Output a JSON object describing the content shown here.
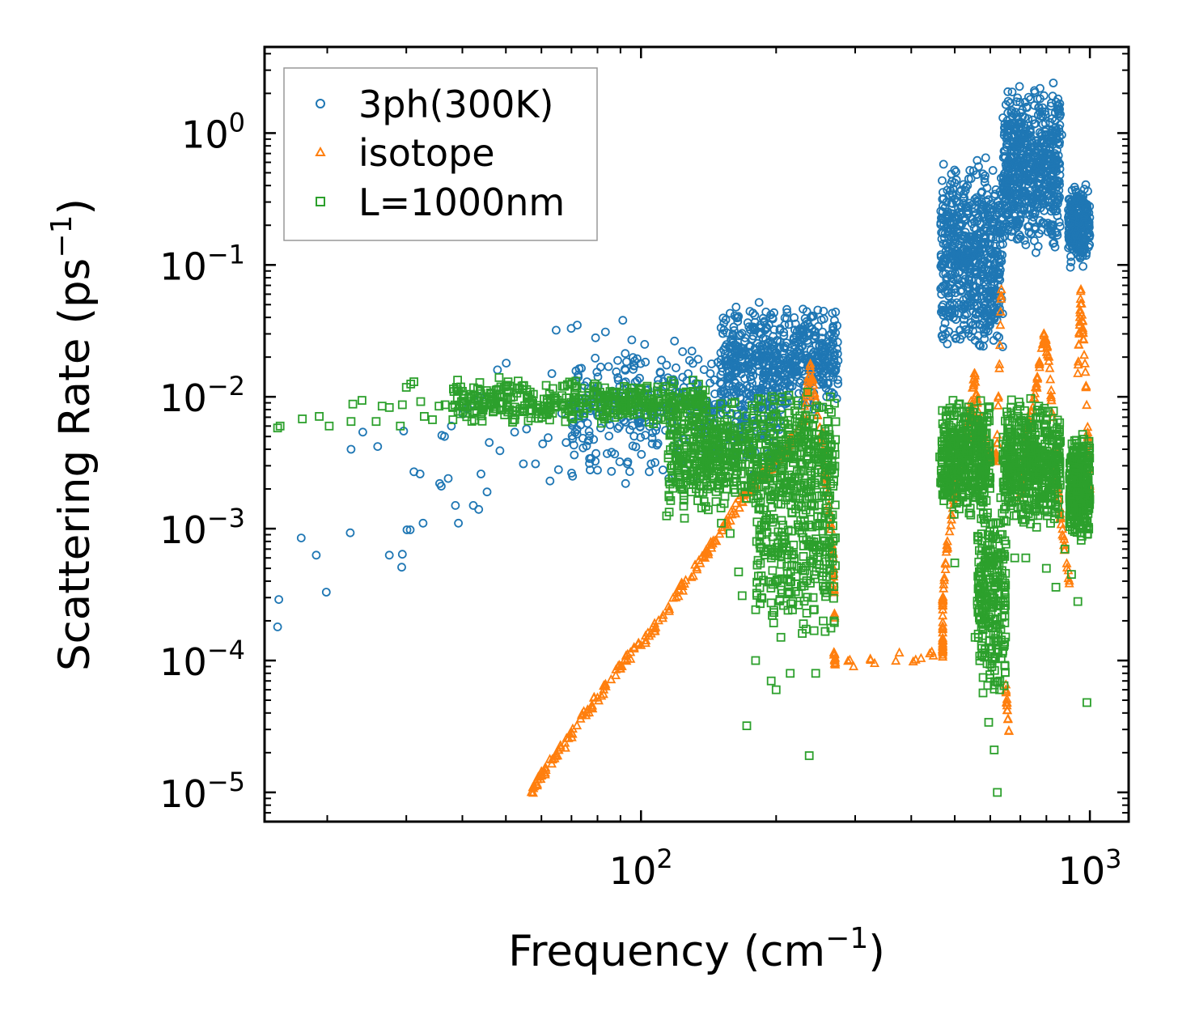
{
  "chart_data": {
    "type": "scatter",
    "xscale": "log",
    "yscale": "log",
    "xlim": [
      14.5,
      1220
    ],
    "ylim": [
      6e-06,
      4.5
    ],
    "xlabel": {
      "base": "Frequency (cm",
      "sup": "−1",
      "tail": ")"
    },
    "ylabel": {
      "base": "Scattering Rate (ps",
      "sup": "−1",
      "tail": ")"
    },
    "x_ticks": [
      {
        "value": 100,
        "base": "10",
        "exp": "2"
      },
      {
        "value": 1000,
        "base": "10",
        "exp": "3"
      }
    ],
    "y_ticks": [
      {
        "value": 1,
        "base": "10",
        "exp": "0"
      },
      {
        "value": 0.1,
        "base": "10",
        "exp": "−1"
      },
      {
        "value": 0.01,
        "base": "10",
        "exp": "−2"
      },
      {
        "value": 0.001,
        "base": "10",
        "exp": "−3"
      },
      {
        "value": 0.0001,
        "base": "10",
        "exp": "−4"
      },
      {
        "value": 1e-05,
        "base": "10",
        "exp": "−5"
      }
    ],
    "legend_position": "top-left",
    "series": [
      {
        "name": "3ph(300K)",
        "marker": "circle",
        "color": "#1f77b4",
        "points": [
          [
            15.5,
            0.00018
          ],
          [
            15.6,
            0.00029
          ],
          [
            17.5,
            0.00085
          ],
          [
            18.9,
            0.00063
          ],
          [
            19.9,
            0.00033
          ],
          [
            22.5,
            0.00093
          ],
          [
            22.6,
            0.004
          ],
          [
            24,
            0.0054
          ],
          [
            25.9,
            0.0042
          ],
          [
            27.5,
            0.00063
          ],
          [
            29.3,
            0.00051
          ],
          [
            29.4,
            0.00064
          ],
          [
            29.6,
            0.0055
          ],
          [
            30.1,
            0.00098
          ],
          [
            30.6,
            0.00098
          ],
          [
            31.2,
            0.0027
          ],
          [
            32.2,
            0.0026
          ],
          [
            32.7,
            0.0011
          ],
          [
            35.6,
            0.0022
          ],
          [
            35.9,
            0.0021
          ],
          [
            36,
            0.0051
          ],
          [
            36.5,
            0.005
          ],
          [
            37.2,
            0.0024
          ],
          [
            37.8,
            0.006
          ],
          [
            38.6,
            0.0015
          ],
          [
            39.2,
            0.0011
          ],
          [
            40.1,
            0.0074
          ],
          [
            41.2,
            0.0082
          ],
          [
            42.3,
            0.0015
          ],
          [
            43.5,
            0.0014
          ],
          [
            43.8,
            0.0099
          ],
          [
            44,
            0.0026
          ],
          [
            45.4,
            0.0019
          ],
          [
            45.9,
            0.0045
          ],
          [
            47.9,
            0.016
          ],
          [
            48.5,
            0.0039
          ],
          [
            50.1,
            0.018
          ],
          [
            52.3,
            0.0054
          ],
          [
            54.7,
            0.0031
          ],
          [
            55.6,
            0.0057
          ],
          [
            58.2,
            0.0031
          ],
          [
            60.4,
            0.0044
          ],
          [
            62.1,
            0.0049
          ],
          [
            62.7,
            0.0023
          ],
          [
            63.3,
            0.015
          ],
          [
            64.7,
            0.032
          ],
          [
            65.5,
            0.0028
          ],
          [
            66.6,
            0.0075
          ],
          [
            68.1,
            0.0045
          ],
          [
            69.9,
            0.033
          ],
          [
            70.4,
            0.0025
          ],
          [
            72.1,
            0.035
          ],
          [
            74.3,
            0.0041
          ],
          [
            75.8,
            0.013
          ],
          [
            76.8,
            0.0034
          ],
          [
            79.2,
            0.028
          ],
          [
            81.3,
            0.0058
          ],
          [
            83.3,
            0.031
          ],
          [
            86,
            0.0038
          ],
          [
            88.8,
            0.014
          ],
          [
            91.1,
            0.038
          ],
          [
            92.4,
            0.0022
          ],
          [
            95.4,
            0.027
          ],
          [
            98.5,
            0.0067
          ],
          [
            101.9,
            0.025
          ],
          [
            104.3,
            0.0027
          ],
          [
            108.5,
            0.0043
          ],
          [
            111.1,
            0.019
          ],
          [
            115.3,
            0.0024
          ],
          [
            119.4,
            0.0037
          ],
          [
            123.8,
            0.022
          ],
          [
            128.3,
            0.0088
          ],
          [
            132.9,
            0.0025
          ],
          [
            137.7,
            0.0052
          ],
          [
            142.7,
            0.015
          ],
          [
            147.9,
            0.0038
          ],
          [
            153.3,
            0.011
          ],
          [
            158.9,
            0.0075
          ],
          [
            164.6,
            0.024
          ],
          [
            170.6,
            0.028
          ],
          [
            176.8,
            0.034
          ],
          [
            183.2,
            0.052
          ],
          [
            189.8,
            0.044
          ],
          [
            196.7,
            0.039
          ],
          [
            203.9,
            0.032
          ],
          [
            211.3,
            0.046
          ],
          [
            219,
            0.028
          ],
          [
            227,
            0.026
          ],
          [
            235.2,
            0.036
          ],
          [
            243.7,
            0.031
          ],
          [
            252.6,
            0.022
          ],
          [
            261.8,
            0.017
          ],
          [
            271.3,
            0.044
          ],
          [
            472,
            0.58
          ],
          [
            493,
            0.43
          ],
          [
            514,
            0.36
          ],
          [
            537,
            0.28
          ],
          [
            561,
            0.62
          ],
          [
            586,
            0.65
          ],
          [
            612,
            0.071
          ],
          [
            639,
            0.16
          ],
          [
            667,
            0.22
          ],
          [
            697,
            0.31
          ],
          [
            728,
            0.48
          ],
          [
            760,
            0.87
          ],
          [
            794,
            1.45
          ],
          [
            829,
            2.4
          ],
          [
            866,
            0.97
          ],
          [
            905,
            0.096
          ],
          [
            945,
            0.21
          ],
          [
            987,
            0.27
          ]
        ],
        "clouds": [
          {
            "x_range": [
              70,
              210
            ],
            "y_range": [
              0.0024,
              0.028
            ],
            "count": 420
          },
          {
            "x_range": [
              150,
              275
            ],
            "y_range": [
              0.0075,
              0.05
            ],
            "count": 520
          },
          {
            "x_range": [
              465,
              640
            ],
            "y_range": [
              0.02,
              0.65
            ],
            "count": 650
          },
          {
            "x_range": [
              640,
              860
            ],
            "y_range": [
              0.12,
              2.4
            ],
            "count": 650
          },
          {
            "x_range": [
              895,
              1000
            ],
            "y_range": [
              0.095,
              0.42
            ],
            "count": 260
          }
        ]
      },
      {
        "name": "isotope",
        "marker": "triangle",
        "color": "#ff7f0e",
        "points": [
          [
            57,
            1e-05
          ],
          [
            60,
            1.35e-05
          ],
          [
            65,
            1.9e-05
          ],
          [
            72,
            3.2e-05
          ],
          [
            80,
            5.2e-05
          ],
          [
            90,
            9e-05
          ],
          [
            100,
            0.00013
          ],
          [
            112,
            0.00022
          ],
          [
            125,
            0.00038
          ],
          [
            140,
            0.00066
          ],
          [
            155,
            0.0011
          ],
          [
            170,
            0.0018
          ],
          [
            185,
            0.0025
          ],
          [
            200,
            0.0033
          ],
          [
            215,
            0.0045
          ],
          [
            230,
            0.0065
          ],
          [
            238,
            0.017
          ],
          [
            250,
            0.0058
          ],
          [
            262,
            0.0015
          ],
          [
            268,
            0.0006
          ],
          [
            270,
            0.00021
          ],
          [
            269,
            0.00011
          ],
          [
            271,
            9.6e-05
          ],
          [
            470,
            0.00011
          ],
          [
            470,
            0.00014
          ],
          [
            470,
            0.00029
          ],
          [
            480,
            0.0007
          ],
          [
            500,
            0.0018
          ],
          [
            520,
            0.0035
          ],
          [
            540,
            0.007
          ],
          [
            553,
            0.015
          ],
          [
            570,
            0.0055
          ],
          [
            600,
            0.0035
          ],
          [
            620,
            0.0035
          ],
          [
            635,
            0.065
          ],
          [
            650,
            6e-05
          ],
          [
            660,
            2.9e-05
          ],
          [
            700,
            0.0017
          ],
          [
            730,
            0.006
          ],
          [
            760,
            0.012
          ],
          [
            790,
            0.029
          ],
          [
            810,
            0.02
          ],
          [
            840,
            0.0028
          ],
          [
            860,
            0.0012
          ],
          [
            900,
            0.0004
          ],
          [
            940,
            0.015
          ],
          [
            955,
            0.065
          ],
          [
            980,
            0.012
          ],
          [
            1000,
            0.002
          ]
        ]
      },
      {
        "name": "L=1000nm",
        "marker": "square",
        "color": "#2ca02c",
        "points": [
          [
            15.5,
            0.0058
          ],
          [
            15.7,
            0.006
          ],
          [
            17.6,
            0.0068
          ],
          [
            19.2,
            0.0071
          ],
          [
            20.2,
            0.006
          ],
          [
            22.6,
            0.0065
          ],
          [
            22.8,
            0.0088
          ],
          [
            23.9,
            0.0094
          ],
          [
            25.7,
            0.0065
          ],
          [
            26.5,
            0.0085
          ],
          [
            27.5,
            0.0083
          ],
          [
            29.1,
            0.006
          ],
          [
            29.4,
            0.0087
          ],
          [
            30,
            0.0118
          ],
          [
            30.7,
            0.0125
          ],
          [
            31.2,
            0.013
          ],
          [
            32.3,
            0.0092
          ],
          [
            32.9,
            0.0071
          ],
          [
            34.3,
            0.0067
          ],
          [
            35.5,
            0.0085
          ],
          [
            36.6,
            0.0087
          ],
          [
            38.1,
            0.0067
          ],
          [
            39.8,
            0.0092
          ],
          [
            40.6,
            0.0075
          ],
          [
            42.5,
            0.0085
          ],
          [
            43.8,
            0.011
          ],
          [
            45.2,
            0.0088
          ],
          [
            46.9,
            0.0078
          ],
          [
            48.3,
            0.014
          ],
          [
            50.2,
            0.0085
          ],
          [
            52.7,
            0.0078
          ],
          [
            55.9,
            0.0092
          ],
          [
            58.4,
            0.0082
          ],
          [
            61.7,
            0.0079
          ],
          [
            64.8,
            0.0085
          ],
          [
            67.4,
            0.012
          ],
          [
            71,
            0.0092
          ],
          [
            74.6,
            0.0075
          ],
          [
            78.4,
            0.012
          ],
          [
            82.3,
            0.0074
          ],
          [
            86.5,
            0.0091
          ],
          [
            90.7,
            0.0082
          ],
          [
            95.2,
            0.0079
          ],
          [
            100,
            0.009
          ],
          [
            105,
            0.0082
          ],
          [
            110,
            0.0079
          ],
          [
            114,
            0.00125
          ],
          [
            125,
            0.0012
          ],
          [
            131,
            0.0065
          ],
          [
            136,
            0.0025
          ],
          [
            145,
            0.0025
          ],
          [
            151,
            0.0011
          ],
          [
            158,
            0.00092
          ],
          [
            165,
            0.00047
          ],
          [
            168,
            0.00031
          ],
          [
            172,
            3.2e-05
          ],
          [
            180,
            0.0001
          ],
          [
            190,
            0.0008
          ],
          [
            195,
            7e-05
          ],
          [
            200,
            6e-05
          ],
          [
            205,
            0.00015
          ],
          [
            215,
            8e-05
          ],
          [
            230,
            0.00019
          ],
          [
            237,
            1.9e-05
          ],
          [
            245,
            8e-05
          ],
          [
            250,
            0.0005
          ],
          [
            262,
            0.0012
          ],
          [
            267,
            0.0006
          ],
          [
            463,
            0.0035
          ],
          [
            480,
            0.0018
          ],
          [
            500,
            0.00055
          ],
          [
            530,
            0.0016
          ],
          [
            555,
            0.00015
          ],
          [
            575,
            0.00028
          ],
          [
            595,
            3.4e-05
          ],
          [
            605,
            9e-05
          ],
          [
            612,
            2.1e-05
          ],
          [
            622,
            1e-05
          ],
          [
            630,
            7e-05
          ],
          [
            650,
            0.0019
          ],
          [
            680,
            0.0006
          ],
          [
            720,
            0.0006
          ],
          [
            760,
            0.0014
          ],
          [
            800,
            0.0005
          ],
          [
            840,
            0.00036
          ],
          [
            880,
            0.0007
          ],
          [
            910,
            0.00045
          ],
          [
            940,
            0.00028
          ],
          [
            985,
            4.8e-05
          ]
        ],
        "clouds": [
          {
            "x_range": [
              38,
              140
            ],
            "y_range": [
              0.006,
              0.014
            ],
            "count": 420
          },
          {
            "x_range": [
              115,
              272
            ],
            "y_range": [
              0.0012,
              0.011
            ],
            "count": 720
          },
          {
            "x_range": [
              180,
              272
            ],
            "y_range": [
              0.00015,
              0.0025
            ],
            "count": 260
          },
          {
            "x_range": [
              465,
              600
            ],
            "y_range": [
              0.0012,
              0.01
            ],
            "count": 420
          },
          {
            "x_range": [
              560,
              650
            ],
            "y_range": [
              5e-05,
              0.002
            ],
            "count": 260
          },
          {
            "x_range": [
              640,
              860
            ],
            "y_range": [
              0.001,
              0.01
            ],
            "count": 480
          },
          {
            "x_range": [
              900,
              1000
            ],
            "y_range": [
              0.0008,
              0.0055
            ],
            "count": 320
          }
        ]
      }
    ]
  },
  "colors": {
    "blue": "#1f77b4",
    "orange": "#ff7f0e",
    "green": "#2ca02c"
  }
}
